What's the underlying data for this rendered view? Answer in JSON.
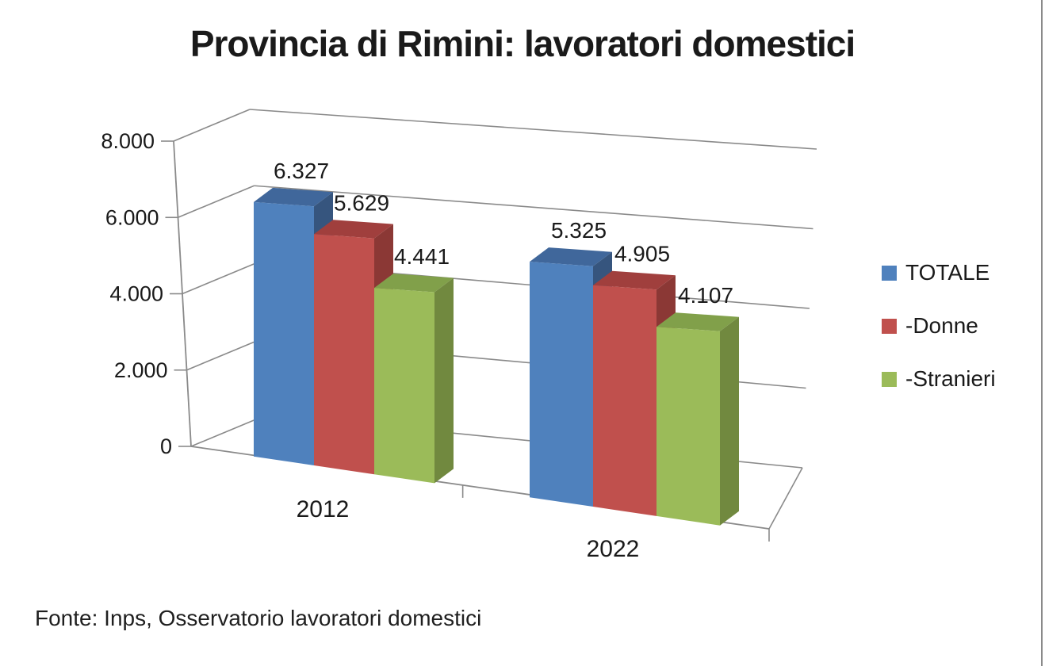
{
  "chart_title": "Provincia di Rimini: lavoratori domestici",
  "source_note": "Fonte: Inps, Osservatorio lavoratori domestici",
  "chart_data": {
    "type": "bar",
    "projection": "3d",
    "title": "Provincia di Rimini: lavoratori domestici",
    "categories": [
      "2012",
      "2022"
    ],
    "series": [
      {
        "name": "TOTALE",
        "values": [
          6327,
          5325
        ],
        "labels": [
          "6.327",
          "5.325"
        ],
        "color": "#4F81BD",
        "color_top": "#40679B",
        "color_side": "#36557E"
      },
      {
        "name": "-Donne",
        "values": [
          5629,
          4905
        ],
        "labels": [
          "5.629",
          "4.905"
        ],
        "color": "#C0504D",
        "color_top": "#A03F3D",
        "color_side": "#8B3835"
      },
      {
        "name": "-Stranieri",
        "values": [
          4441,
          4107
        ],
        "labels": [
          "4.441",
          "4.107"
        ],
        "color": "#9BBB59",
        "color_top": "#81A04A",
        "color_side": "#71893F"
      }
    ],
    "yaxis": {
      "min": 0,
      "max": 8000,
      "ticks": [
        {
          "value": 0,
          "label": "0"
        },
        {
          "value": 2000,
          "label": "2.000"
        },
        {
          "value": 4000,
          "label": "4.000"
        },
        {
          "value": 6000,
          "label": "6.000"
        },
        {
          "value": 8000,
          "label": "8.000"
        }
      ]
    },
    "legend_position": "right",
    "grid": true,
    "data_labels": true
  },
  "colors": {
    "text": "#1a1a1a",
    "gridline": "#8a8a8a",
    "background": "#ffffff",
    "border": "#8a8a8a"
  }
}
